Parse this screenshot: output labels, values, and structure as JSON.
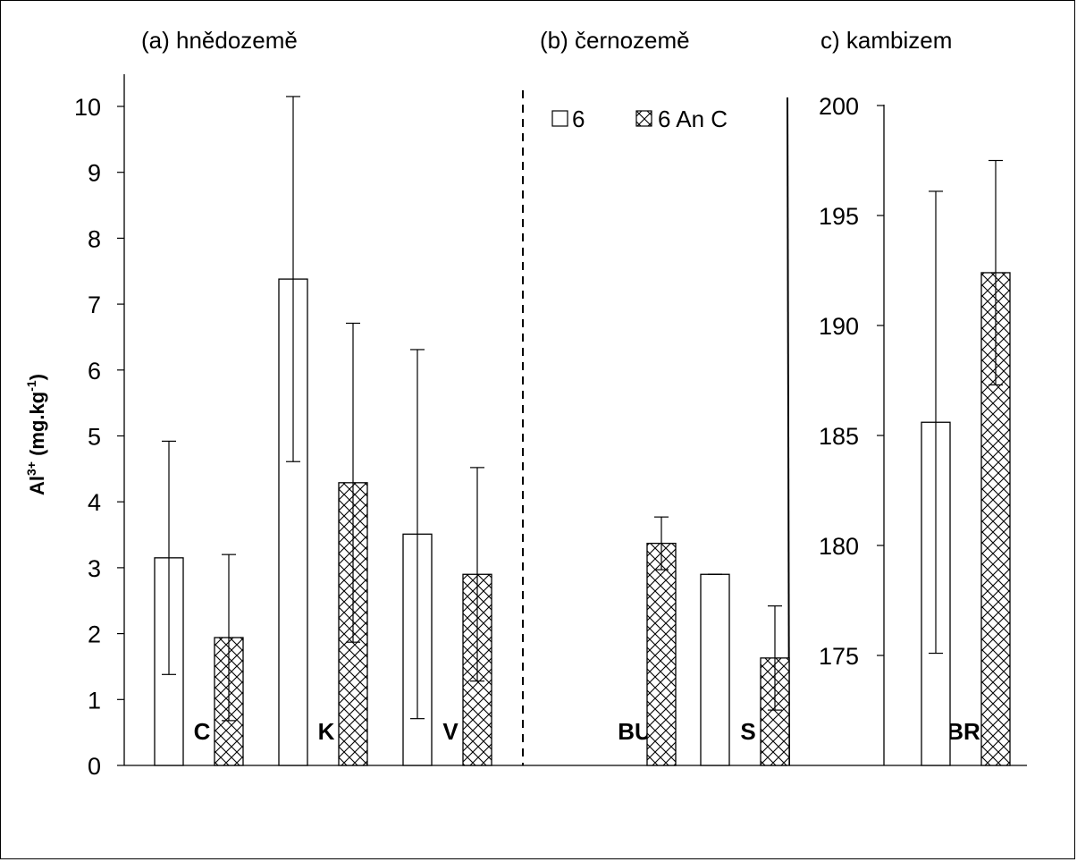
{
  "chart_data": {
    "type": "bar",
    "ylabel": {
      "main": "Al",
      "sup1": "3+",
      "unit": " (mg.kg",
      "sup2": "-1",
      "close": ")"
    },
    "legend": {
      "items": [
        {
          "name": "6",
          "pattern": "white"
        },
        {
          "name": "6 An C",
          "pattern": "crosshatch"
        }
      ],
      "position": "top"
    },
    "panels": [
      {
        "title": "(a) hnědozemě",
        "categories": [
          "C",
          "K",
          "V"
        ],
        "ylim": [
          0,
          10
        ],
        "yticks": [
          0,
          1,
          2,
          3,
          4,
          5,
          6,
          7,
          8,
          9,
          10
        ],
        "series": [
          {
            "name": "6",
            "values": [
              3.15,
              7.38,
              3.51
            ],
            "errors": [
              1.77,
              2.77,
              2.8
            ]
          },
          {
            "name": "6 An C",
            "values": [
              1.94,
              4.29,
              2.9
            ],
            "errors": [
              1.26,
              2.42,
              1.62
            ]
          }
        ]
      },
      {
        "title": "(b) černozemě",
        "categories": [
          "BU",
          "S"
        ],
        "ylim": [
          0,
          10
        ],
        "series": [
          {
            "name": "6",
            "values": [
              null,
              2.9
            ],
            "errors": [
              null,
              0
            ]
          },
          {
            "name": "6 An C",
            "values": [
              3.37,
              1.63
            ],
            "errors": [
              0.4,
              0.79
            ]
          }
        ]
      },
      {
        "title": "c) kambizem",
        "categories": [
          "BR"
        ],
        "ylim": [
          170,
          200
        ],
        "yticks": [
          175,
          180,
          185,
          190,
          195,
          200
        ],
        "series": [
          {
            "name": "6",
            "values": [
              185.6
            ],
            "errors": [
              10.5
            ]
          },
          {
            "name": "6 An C",
            "values": [
              192.4
            ],
            "errors": [
              5.1
            ]
          }
        ]
      }
    ],
    "colors": {
      "bar_stroke": "#000000",
      "hatch": "#000000",
      "background": "#ffffff"
    }
  }
}
